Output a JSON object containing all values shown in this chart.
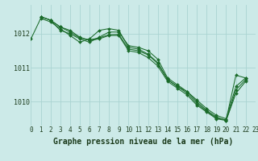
{
  "title": "Graphe pression niveau de la mer (hPa)",
  "bg_color": "#cceae8",
  "grid_color": "#aad4d2",
  "line_color": "#1a6b2a",
  "hours": [
    0,
    1,
    2,
    3,
    4,
    5,
    6,
    7,
    8,
    9,
    10,
    11,
    12,
    13,
    14,
    15,
    16,
    17,
    18,
    19,
    20,
    21,
    22,
    23
  ],
  "series1": [
    1011.85,
    1012.45,
    1012.35,
    1012.15,
    1011.95,
    1011.75,
    1011.85,
    1012.1,
    1012.15,
    1012.1,
    1011.6,
    1011.55,
    1011.4,
    1011.15,
    1010.65,
    1010.45,
    1010.3,
    1010.05,
    1009.8,
    1009.6,
    1009.5,
    1010.45,
    1010.7,
    null
  ],
  "series2": [
    null,
    1012.5,
    1012.4,
    1012.1,
    1012.0,
    1011.85,
    1011.75,
    1011.9,
    1012.05,
    1012.05,
    1011.65,
    1011.6,
    1011.5,
    1011.25,
    1010.7,
    1010.5,
    1010.3,
    1010.0,
    1009.75,
    1009.55,
    1009.45,
    1010.35,
    1010.65,
    null
  ],
  "series3": [
    null,
    1012.5,
    1012.4,
    1012.2,
    1012.1,
    1011.9,
    1011.8,
    1011.85,
    1011.95,
    1011.95,
    1011.5,
    1011.45,
    1011.3,
    1011.05,
    1010.6,
    1010.4,
    1010.2,
    1009.9,
    1009.7,
    1009.5,
    1009.45,
    1010.25,
    1010.6,
    null
  ],
  "series_top": [
    null,
    1012.5,
    1012.4,
    1012.2,
    1012.05,
    1011.88,
    1011.82,
    1011.88,
    1011.97,
    1011.98,
    1011.55,
    1011.5,
    1011.38,
    1011.12,
    1010.65,
    1010.45,
    1010.25,
    1009.95,
    1009.72,
    1009.52,
    1009.47,
    1010.78,
    1010.7,
    null
  ],
  "ylim": [
    1009.3,
    1012.85
  ],
  "yticks": [
    1010,
    1011,
    1012
  ],
  "xlim": [
    0,
    23
  ],
  "tick_fontsize": 5.5,
  "title_fontsize": 7
}
